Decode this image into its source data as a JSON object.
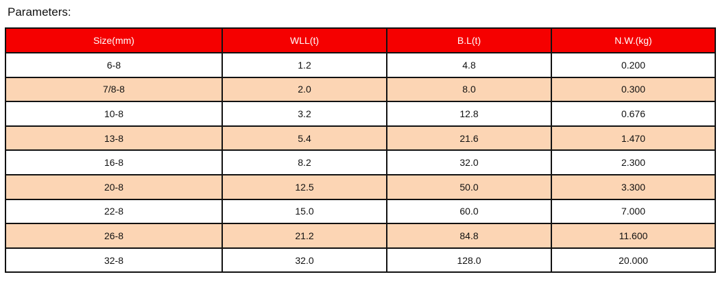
{
  "title": "Parameters:",
  "colors": {
    "header_bg": "#f50000",
    "alt_row_bg": "#fcd5b4"
  },
  "table": {
    "headers": [
      "Size(mm)",
      "WLL(t)",
      "B.L(t)",
      "N.W.(kg)"
    ],
    "rows": [
      [
        "6-8",
        "1.2",
        "4.8",
        "0.200"
      ],
      [
        "7/8-8",
        "2.0",
        "8.0",
        "0.300"
      ],
      [
        "10-8",
        "3.2",
        "12.8",
        "0.676"
      ],
      [
        "13-8",
        "5.4",
        "21.6",
        "1.470"
      ],
      [
        "16-8",
        "8.2",
        "32.0",
        "2.300"
      ],
      [
        "20-8",
        "12.5",
        "50.0",
        "3.300"
      ],
      [
        "22-8",
        "15.0",
        "60.0",
        "7.000"
      ],
      [
        "26-8",
        "21.2",
        "84.8",
        "11.600"
      ],
      [
        "32-8",
        "32.0",
        "128.0",
        "20.000"
      ]
    ]
  }
}
